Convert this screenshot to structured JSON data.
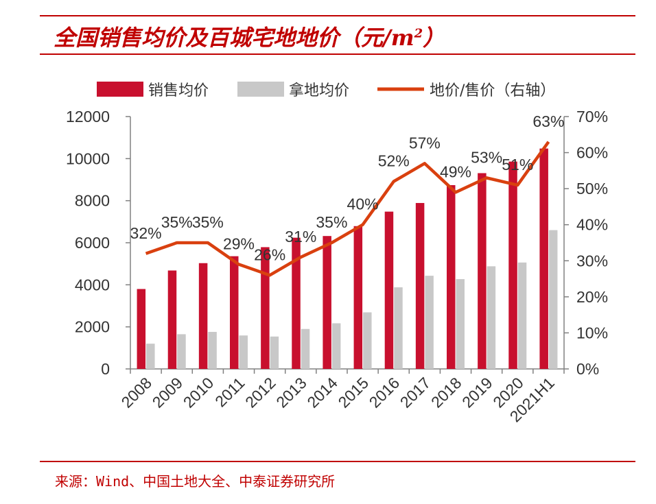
{
  "title": "全国销售均价及百城宅地地价（元/m",
  "title_sup": "2",
  "title_close": "）",
  "source": "来源：Wind、中国土地大全、中泰证券研究所",
  "colors": {
    "sales": "#c8102e",
    "land": "#c8c8c8",
    "ratio": "#d9400f",
    "rule": "#c00000"
  },
  "chart_data": {
    "type": "bar+line",
    "categories": [
      "2008",
      "2009",
      "2010",
      "2011",
      "2012",
      "2013",
      "2014",
      "2015",
      "2016",
      "2017",
      "2018",
      "2019",
      "2020",
      "2021H1"
    ],
    "series": [
      {
        "name": "销售均价",
        "type": "bar",
        "axis": "left",
        "values": [
          3800,
          4680,
          5030,
          5360,
          5790,
          6240,
          6320,
          6790,
          7480,
          7890,
          8740,
          9310,
          9860,
          10480
        ]
      },
      {
        "name": "拿地均价",
        "type": "bar",
        "axis": "left",
        "values": [
          1200,
          1650,
          1760,
          1590,
          1540,
          1900,
          2170,
          2690,
          3880,
          4430,
          4270,
          4880,
          5060,
          6600
        ]
      },
      {
        "name": "地价/售价（右轴）",
        "type": "line",
        "axis": "right",
        "values": [
          32,
          35,
          35,
          29,
          26,
          31,
          35,
          40,
          52,
          57,
          49,
          53,
          51,
          63
        ],
        "labels": [
          "32%",
          "35%",
          "35%",
          "29%",
          "26%",
          "31%",
          "35%",
          "40%",
          "52%",
          "57%",
          "49%",
          "53%",
          "51%",
          "63%"
        ]
      }
    ],
    "y_left": {
      "min": 0,
      "max": 12000,
      "ticks": [
        "0",
        "2000",
        "4000",
        "6000",
        "8000",
        "10000",
        "12000"
      ]
    },
    "y_right": {
      "min": 0,
      "max": 70,
      "ticks": [
        "0%",
        "10%",
        "20%",
        "30%",
        "40%",
        "50%",
        "60%",
        "70%"
      ]
    },
    "legend_position": "top",
    "grid": false
  }
}
